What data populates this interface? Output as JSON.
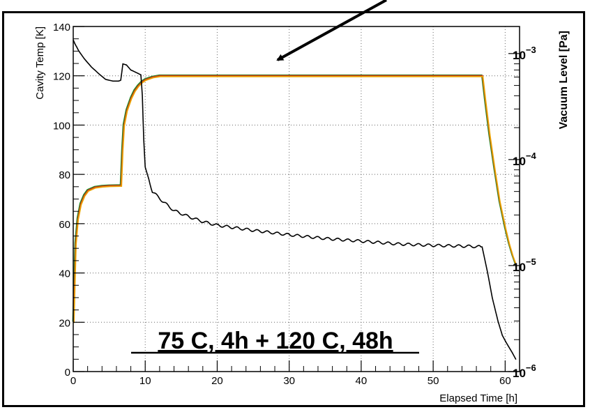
{
  "chart_data": {
    "type": "line",
    "title": "",
    "xlabel": "Elapsed Time [h]",
    "ylabel": "Cavity Temp [K]",
    "y2label": "Vacuum Level [Pa]",
    "xlim": [
      0,
      62
    ],
    "ylim": [
      0,
      140
    ],
    "y2lim": [
      1e-06,
      0.0018
    ],
    "y2scale": "log",
    "grid": true,
    "x_ticks": [
      0,
      10,
      20,
      30,
      40,
      50,
      60
    ],
    "y_ticks": [
      0,
      20,
      40,
      60,
      80,
      100,
      120,
      140
    ],
    "y2_ticks": [
      {
        "value": 1e-06,
        "base": "10",
        "exp": "−6"
      },
      {
        "value": 1e-05,
        "base": "10",
        "exp": "−5"
      },
      {
        "value": 0.0001,
        "base": "10",
        "exp": "−4"
      },
      {
        "value": 0.001,
        "base": "10",
        "exp": "−3"
      }
    ],
    "annotation": "75 C, 4h + 120 C, 48h",
    "temperature_series": [
      {
        "color": "#228b22"
      },
      {
        "color": "#d22a1e"
      },
      {
        "color": "#e8a200"
      }
    ],
    "temperature_profile": {
      "x": [
        0,
        0.3,
        0.6,
        1.0,
        1.5,
        2.0,
        3.0,
        4.0,
        5.0,
        6.6,
        6.8,
        7.0,
        7.4,
        8.0,
        8.5,
        9.0,
        9.5,
        10.0,
        11.0,
        12.0,
        20,
        30,
        40,
        50,
        56.8,
        57.2,
        57.8,
        58.5,
        59.2,
        60.0,
        60.5,
        61.0,
        61.5
      ],
      "y": [
        20,
        52,
        62,
        68,
        71.5,
        73.5,
        74.8,
        75.2,
        75.4,
        75.5,
        90,
        100,
        106,
        111,
        114,
        116,
        117.5,
        118.5,
        119.5,
        120,
        120,
        120,
        120,
        120,
        120,
        110,
        96,
        82,
        69,
        58,
        52,
        47,
        43
      ]
    },
    "vacuum_series": {
      "color": "#000000",
      "x": [
        0,
        0.2,
        0.8,
        1.5,
        2.5,
        3.5,
        4.5,
        5.5,
        6.3,
        6.6,
        6.9,
        7.4,
        8.0,
        8.8,
        9.4,
        9.6,
        9.8,
        10.0,
        11.0,
        12.5,
        14.0,
        16.0,
        18.0,
        20.0,
        25.0,
        30.0,
        35.0,
        40.0,
        45.0,
        50.0,
        55.0,
        56.8,
        57.5,
        58.2,
        59.0,
        59.6,
        60.3,
        61.0,
        61.5
      ],
      "y": [
        0.00135,
        0.00125,
        0.00105,
        0.0009,
        0.00075,
        0.00065,
        0.00057,
        0.00055,
        0.00055,
        0.00056,
        0.0008,
        0.00078,
        0.0007,
        0.00066,
        0.00063,
        0.0004,
        0.00015,
        8.5e-05,
        5e-05,
        4e-05,
        3.3e-05,
        2.9e-05,
        2.6e-05,
        2.4e-05,
        2.15e-05,
        1.95e-05,
        1.8e-05,
        1.7e-05,
        1.6e-05,
        1.55e-05,
        1.52e-05,
        1.5e-05,
        9e-06,
        5e-06,
        3e-06,
        2.2e-06,
        1.8e-06,
        1.5e-06,
        1.3e-06
      ]
    }
  }
}
